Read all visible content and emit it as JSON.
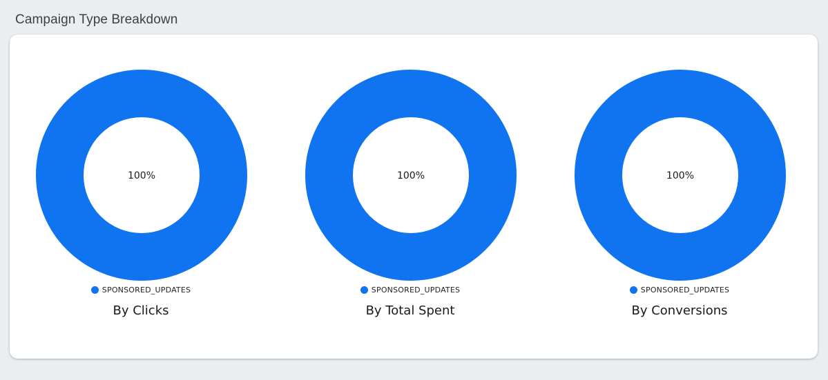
{
  "page": {
    "title": "Campaign Type Breakdown"
  },
  "colors": {
    "series": "#1074f0",
    "background": "#ebeef1",
    "card": "#ffffff"
  },
  "chart_data": [
    {
      "type": "pie",
      "subtype": "donut",
      "title": "By Clicks",
      "categories": [
        "SPONSORED_UPDATES"
      ],
      "values": [
        100
      ],
      "slice_labels": [
        "100%"
      ],
      "legend_position": "bottom",
      "legend": [
        "SPONSORED_UPDATES"
      ]
    },
    {
      "type": "pie",
      "subtype": "donut",
      "title": "By Total Spent",
      "categories": [
        "SPONSORED_UPDATES"
      ],
      "values": [
        100
      ],
      "slice_labels": [
        "100%"
      ],
      "legend_position": "bottom",
      "legend": [
        "SPONSORED_UPDATES"
      ]
    },
    {
      "type": "pie",
      "subtype": "donut",
      "title": "By Conversions",
      "categories": [
        "SPONSORED_UPDATES"
      ],
      "values": [
        100
      ],
      "slice_labels": [
        "100%"
      ],
      "legend_position": "bottom",
      "legend": [
        "SPONSORED_UPDATES"
      ]
    }
  ]
}
